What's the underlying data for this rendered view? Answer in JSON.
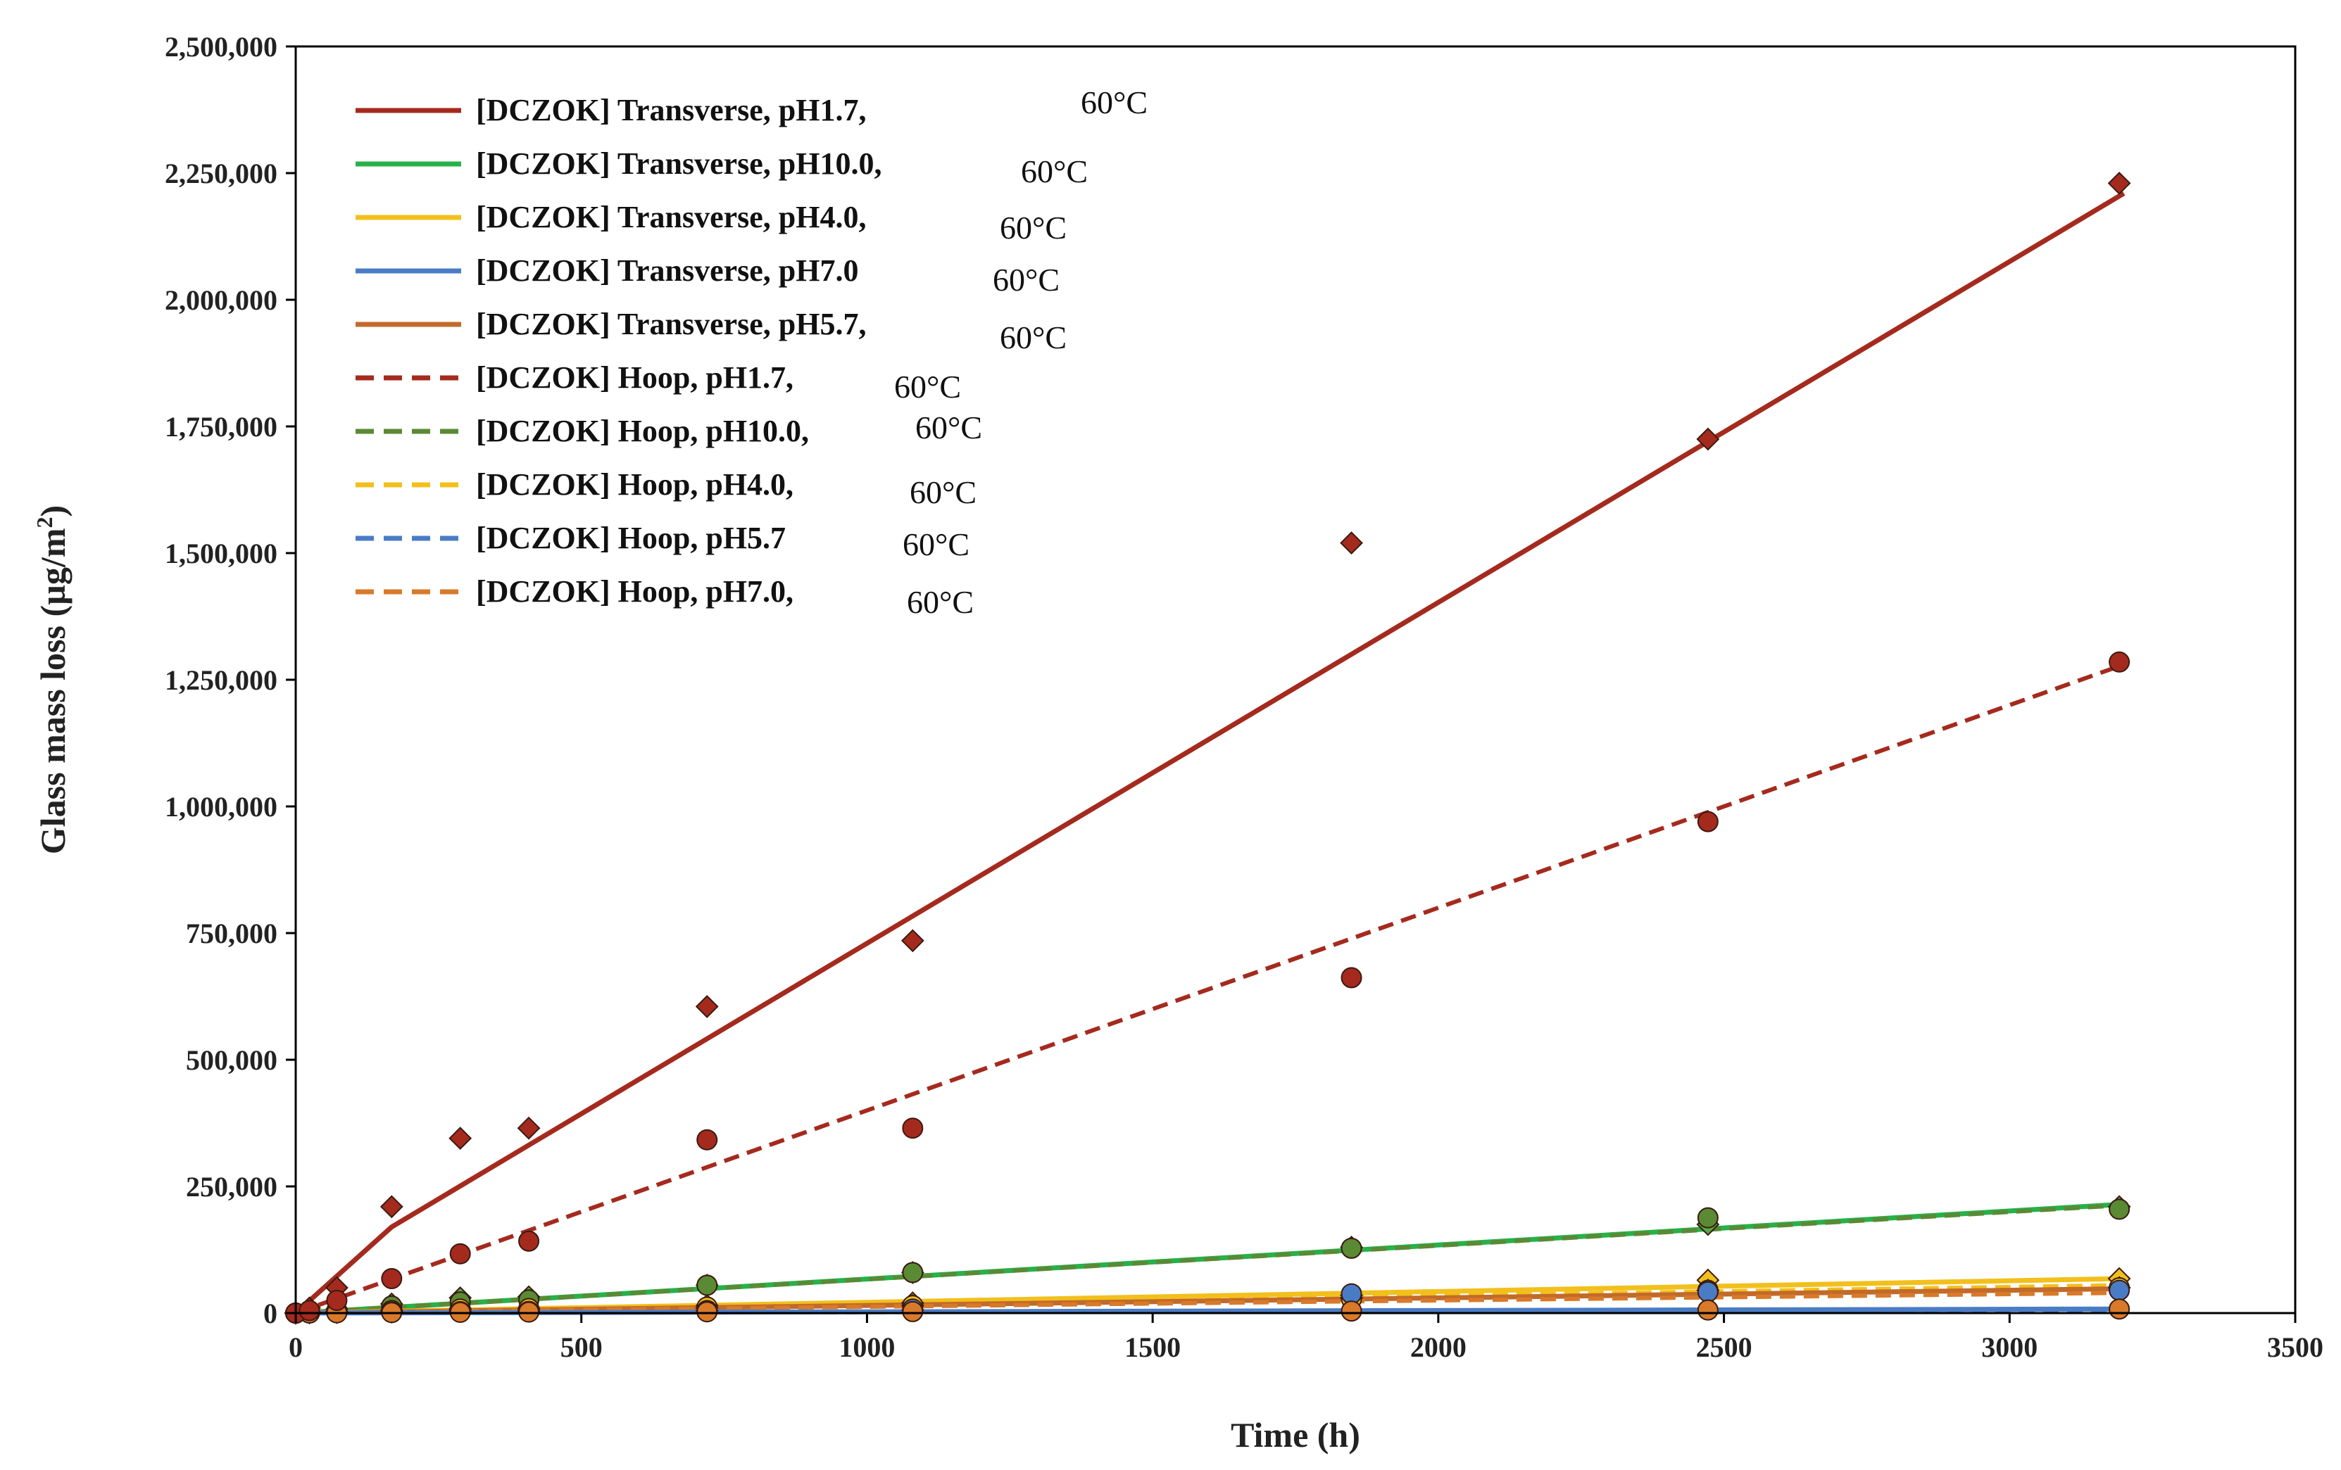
{
  "chart_data": {
    "type": "scatter",
    "title": "",
    "xlabel": "Time (h)",
    "ylabel_main": "Glass mass loss (µg/m",
    "ylabel_sup": "2",
    "ylabel_close": ")",
    "xlim": [
      0,
      3500
    ],
    "ylim": [
      0,
      2500000
    ],
    "x_ticks": [
      0,
      500,
      1000,
      1500,
      2000,
      2500,
      3000,
      3500
    ],
    "x_tick_labels": [
      "0",
      "500",
      "1000",
      "1500",
      "2000",
      "2500",
      "3000",
      "3500"
    ],
    "y_ticks": [
      0,
      250000,
      500000,
      750000,
      1000000,
      1250000,
      1500000,
      1750000,
      2000000,
      2250000,
      2500000
    ],
    "y_tick_labels": [
      "0",
      "250,000",
      "500,000",
      "750,000",
      "1,000,000",
      "1,250,000",
      "1,500,000",
      "1,750,000",
      "2,000,000",
      "2,250,000",
      "2,500,000"
    ],
    "grid": false,
    "legend_position": "top-left",
    "legend": [
      {
        "label": "[DCZOK] Transverse, pH1.7,",
        "temp": "60°C",
        "color": "#a52a1e",
        "dash": false
      },
      {
        "label": "[DCZOK] Transverse, pH10.0,",
        "temp": "60°C",
        "color": "#28b04a",
        "dash": false
      },
      {
        "label": "[DCZOK] Transverse, pH4.0,",
        "temp": "60°C",
        "color": "#f2c01c",
        "dash": false
      },
      {
        "label": "[DCZOK] Transverse, pH7.0",
        "temp": "60°C",
        "color": "#4a7cc6",
        "dash": false
      },
      {
        "label": "[DCZOK] Transverse, pH5.7,",
        "temp": "60°C",
        "color": "#c26a2a",
        "dash": false
      },
      {
        "label": "[DCZOK] Hoop, pH1.7,",
        "temp": "60°C",
        "color": "#a52a1e",
        "dash": true
      },
      {
        "label": "[DCZOK] Hoop, pH10.0,",
        "temp": "60°C",
        "color": "#5a8a34",
        "dash": true
      },
      {
        "label": "[DCZOK] Hoop, pH4.0,",
        "temp": "60°C",
        "color": "#f2c01c",
        "dash": true
      },
      {
        "label": "[DCZOK] Hoop, pH5.7",
        "temp": "60°C",
        "color": "#4a7cc6",
        "dash": true
      },
      {
        "label": "[DCZOK] Hoop, pH7.0,",
        "temp": "60°C",
        "color": "#d87a2a",
        "dash": true
      }
    ],
    "fit_lines": [
      {
        "name": "Transverse pH1.7 fit",
        "color": "#a52a1e",
        "dash": false,
        "x": [
          0,
          168,
          3200
        ],
        "y": [
          0,
          170000,
          2210000
        ]
      },
      {
        "name": "Hoop pH1.7 fit",
        "color": "#a52a1e",
        "dash": true,
        "x": [
          0,
          3200
        ],
        "y": [
          0,
          1280000
        ]
      },
      {
        "name": "Transverse pH10.0 fit",
        "color": "#28b04a",
        "dash": false,
        "x": [
          0,
          3200
        ],
        "y": [
          0,
          215000
        ]
      },
      {
        "name": "Hoop pH10.0 fit",
        "color": "#5a8a34",
        "dash": true,
        "x": [
          0,
          3200
        ],
        "y": [
          0,
          213000
        ]
      },
      {
        "name": "Transverse pH4.0 fit",
        "color": "#f2c01c",
        "dash": false,
        "x": [
          0,
          3200
        ],
        "y": [
          0,
          68000
        ]
      },
      {
        "name": "Hoop pH4.0 fit",
        "color": "#f2c01c",
        "dash": true,
        "x": [
          0,
          3200
        ],
        "y": [
          0,
          55000
        ]
      },
      {
        "name": "Transverse pH5.7 fit",
        "color": "#c26a2a",
        "dash": false,
        "x": [
          0,
          3200
        ],
        "y": [
          0,
          48000
        ]
      },
      {
        "name": "Hoop pH7.0 fit",
        "color": "#d87a2a",
        "dash": true,
        "x": [
          0,
          3200
        ],
        "y": [
          0,
          40000
        ]
      },
      {
        "name": "Transverse pH7.0 fit",
        "color": "#4a7cc6",
        "dash": false,
        "x": [
          0,
          3200
        ],
        "y": [
          0,
          8000
        ]
      },
      {
        "name": "Hoop pH5.7 fit",
        "color": "#4a7cc6",
        "dash": true,
        "x": [
          0,
          3200
        ],
        "y": [
          0,
          6000
        ]
      }
    ],
    "series": [
      {
        "name": "Transverse pH10.0",
        "marker": "diamond",
        "color": "#5aa84a",
        "x": [
          0,
          24,
          72,
          168,
          288,
          408,
          720,
          1080,
          1848,
          2472,
          3192
        ],
        "y": [
          0,
          2000,
          8000,
          18000,
          30000,
          32000,
          55000,
          80000,
          130000,
          175000,
          210000
        ]
      },
      {
        "name": "Transverse pH4.0",
        "marker": "diamond",
        "color": "#f2c01c",
        "x": [
          0,
          24,
          72,
          168,
          288,
          408,
          720,
          1080,
          1848,
          2472,
          3192
        ],
        "y": [
          0,
          1000,
          3000,
          6000,
          9000,
          10000,
          15000,
          20000,
          35000,
          65000,
          68000
        ]
      },
      {
        "name": "Transverse pH5.7",
        "marker": "diamond",
        "color": "#c26a2a",
        "x": [
          0,
          24,
          72,
          168,
          288,
          408,
          720,
          1080,
          1848,
          2472,
          3192
        ],
        "y": [
          0,
          800,
          2000,
          4000,
          6000,
          7000,
          10000,
          15000,
          30000,
          45000,
          50000
        ]
      },
      {
        "name": "Transverse pH7.0",
        "marker": "diamond",
        "color": "#4a7cc6",
        "x": [
          0,
          24,
          72,
          168,
          288,
          408,
          720,
          1080,
          1848,
          2472,
          3192
        ],
        "y": [
          0,
          400,
          1000,
          2000,
          3000,
          3500,
          5000,
          6000,
          30000,
          45000,
          50000
        ]
      },
      {
        "name": "Hoop pH10.0",
        "marker": "circle",
        "color": "#5a8a34",
        "x": [
          0,
          24,
          72,
          168,
          288,
          408,
          720,
          1080,
          1848,
          2472,
          3192
        ],
        "y": [
          0,
          1500,
          5000,
          14000,
          22000,
          26000,
          55000,
          80000,
          128000,
          188000,
          205000
        ]
      },
      {
        "name": "Hoop pH4.0",
        "marker": "circle",
        "color": "#f2c01c",
        "x": [
          0,
          24,
          72,
          168,
          288,
          408,
          720,
          1080,
          1848,
          2472,
          3192
        ],
        "y": [
          0,
          800,
          2500,
          5000,
          8000,
          9000,
          12000,
          15000,
          28000,
          45000,
          50000
        ]
      },
      {
        "name": "Hoop pH5.7",
        "marker": "circle",
        "color": "#4a7cc6",
        "x": [
          0,
          24,
          72,
          168,
          288,
          408,
          720,
          1080,
          1848,
          2472,
          3192
        ],
        "y": [
          0,
          300,
          1000,
          2000,
          3000,
          3500,
          5000,
          8000,
          38000,
          42000,
          45000
        ]
      },
      {
        "name": "Hoop pH7.0",
        "marker": "circle",
        "color": "#d87a2a",
        "x": [
          0,
          24,
          72,
          168,
          288,
          408,
          720,
          1080,
          1848,
          2472,
          3192
        ],
        "y": [
          0,
          200,
          500,
          1000,
          1500,
          2000,
          2500,
          3000,
          4000,
          6000,
          8000
        ]
      },
      {
        "name": "Transverse pH1.7",
        "marker": "diamond",
        "color": "#a52a1e",
        "x": [
          0,
          24,
          72,
          168,
          288,
          408,
          720,
          1080,
          1848,
          2472,
          3192
        ],
        "y": [
          0,
          10000,
          50000,
          210000,
          345000,
          365000,
          605000,
          735000,
          1520000,
          1725000,
          2230000
        ]
      },
      {
        "name": "Hoop pH1.7",
        "marker": "circle",
        "color": "#a52a1e",
        "x": [
          0,
          24,
          72,
          168,
          288,
          408,
          720,
          1080,
          1848,
          2472,
          3192
        ],
        "y": [
          0,
          5000,
          25000,
          68000,
          117000,
          142000,
          342000,
          365000,
          662000,
          970000,
          1285000
        ]
      }
    ]
  }
}
